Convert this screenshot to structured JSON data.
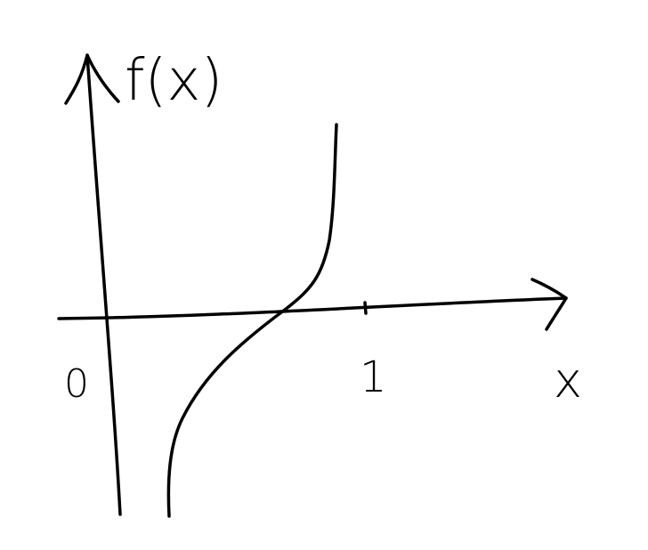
{
  "axes": {
    "y_label": "f(x)",
    "x_label": "x",
    "origin_label": "0",
    "x_tick_label": "1"
  }
}
